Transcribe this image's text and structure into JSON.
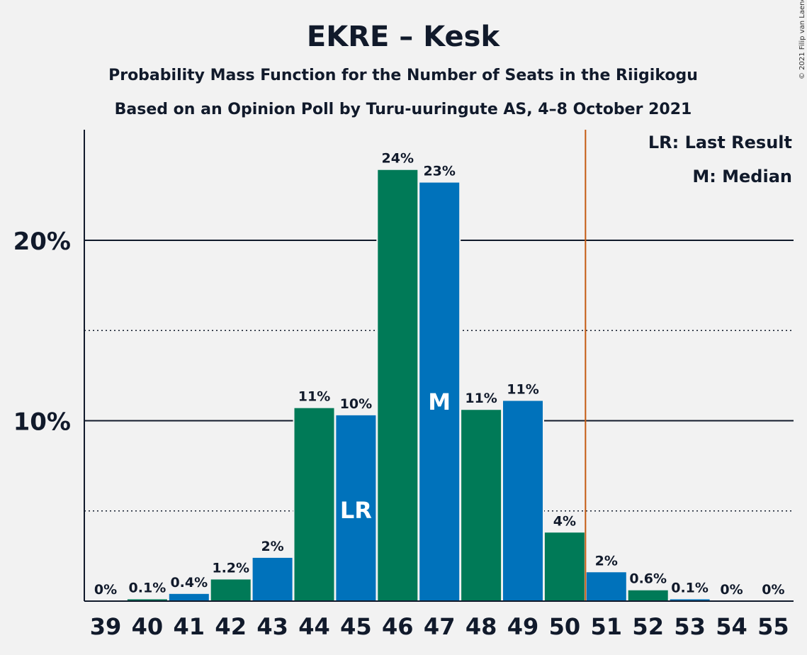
{
  "chart_data": {
    "type": "bar",
    "title": "EKRE – Kesk",
    "subtitle": "Probability Mass Function for the Number of Seats in the Riigikogu",
    "subtitle2": "Based on an Opinion Poll by Turu-uuringute AS, 4–8 October 2021",
    "copyright": "© 2021 Filip van Laenen",
    "legend": [
      "LR: Last Result",
      "M: Median"
    ],
    "legend_position": "top-right",
    "categories": [
      "39",
      "40",
      "41",
      "42",
      "43",
      "44",
      "45",
      "46",
      "47",
      "48",
      "49",
      "50",
      "51",
      "52",
      "53",
      "54",
      "55"
    ],
    "values": [
      0,
      0.1,
      0.4,
      1.2,
      2.4,
      10.7,
      10.3,
      23.9,
      23.2,
      10.6,
      11.1,
      3.8,
      1.6,
      0.6,
      0.1,
      0,
      0
    ],
    "labels": [
      "0%",
      "0.1%",
      "0.4%",
      "1.2%",
      "2%",
      "11%",
      "10%",
      "24%",
      "23%",
      "11%",
      "11%",
      "4%",
      "2%",
      "0.6%",
      "0.1%",
      "0%",
      "0%"
    ],
    "bar_colors": [
      "#0072bb",
      "#007a57"
    ],
    "yticks": [
      {
        "value": 10,
        "label": "10%"
      },
      {
        "value": 20,
        "label": "20%"
      }
    ],
    "ylim": [
      0,
      26
    ],
    "last_result": {
      "category": "45",
      "label": "LR"
    },
    "median": {
      "category": "47",
      "label": "M"
    },
    "majority_line": {
      "after_category": "50",
      "color": "#c45a11"
    },
    "grid": {
      "major": [
        10,
        20
      ],
      "minor": [
        5,
        15
      ]
    }
  }
}
